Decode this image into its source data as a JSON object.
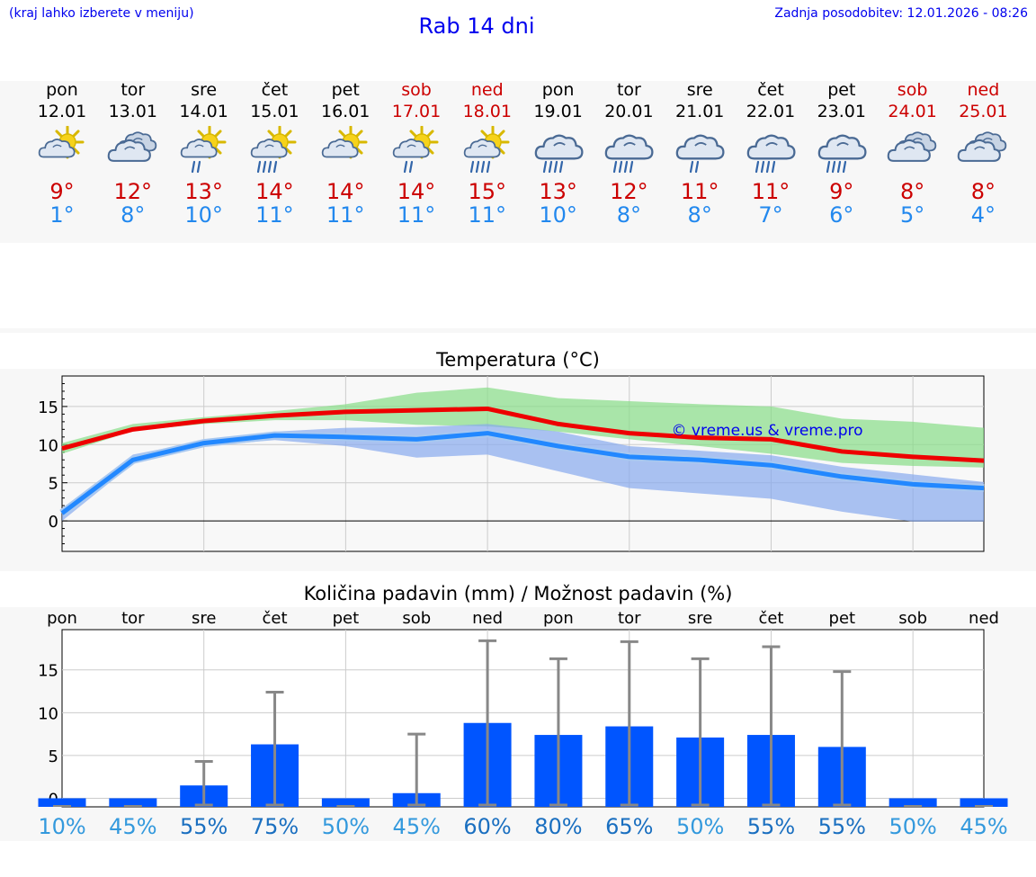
{
  "header": {
    "hint": "(kraj lahko izberete v meniju)",
    "title": "Rab 14 dni",
    "updated": "Zadnja posodobitev: 12.01.2026 - 08:26"
  },
  "days": [
    {
      "name": "pon",
      "date": "12.01",
      "weekend": false,
      "icon": "sun-cloud-icon",
      "tmax": "9°",
      "tmin": "1°"
    },
    {
      "name": "tor",
      "date": "13.01",
      "weekend": false,
      "icon": "cloudy-icon",
      "tmax": "12°",
      "tmin": "8°"
    },
    {
      "name": "sre",
      "date": "14.01",
      "weekend": false,
      "icon": "sun-cloud-light-rain-icon",
      "tmax": "13°",
      "tmin": "10°"
    },
    {
      "name": "čet",
      "date": "15.01",
      "weekend": false,
      "icon": "sun-cloud-rain-icon",
      "tmax": "14°",
      "tmin": "11°"
    },
    {
      "name": "pet",
      "date": "16.01",
      "weekend": false,
      "icon": "sun-cloud-icon",
      "tmax": "14°",
      "tmin": "11°"
    },
    {
      "name": "sob",
      "date": "17.01",
      "weekend": true,
      "icon": "sun-cloud-light-rain-icon",
      "tmax": "14°",
      "tmin": "11°"
    },
    {
      "name": "ned",
      "date": "18.01",
      "weekend": true,
      "icon": "sun-cloud-rain-icon",
      "tmax": "15°",
      "tmin": "11°"
    },
    {
      "name": "pon",
      "date": "19.01",
      "weekend": false,
      "icon": "cloud-rain-icon",
      "tmax": "13°",
      "tmin": "10°"
    },
    {
      "name": "tor",
      "date": "20.01",
      "weekend": false,
      "icon": "cloud-rain-icon",
      "tmax": "12°",
      "tmin": "8°"
    },
    {
      "name": "sre",
      "date": "21.01",
      "weekend": false,
      "icon": "cloud-light-rain-icon",
      "tmax": "11°",
      "tmin": "8°"
    },
    {
      "name": "čet",
      "date": "22.01",
      "weekend": false,
      "icon": "cloud-rain-icon",
      "tmax": "11°",
      "tmin": "7°"
    },
    {
      "name": "pet",
      "date": "23.01",
      "weekend": false,
      "icon": "cloud-rain-icon",
      "tmax": "9°",
      "tmin": "6°"
    },
    {
      "name": "sob",
      "date": "24.01",
      "weekend": true,
      "icon": "cloudy-icon",
      "tmax": "8°",
      "tmin": "5°"
    },
    {
      "name": "ned",
      "date": "25.01",
      "weekend": true,
      "icon": "cloudy-icon",
      "tmax": "8°",
      "tmin": "4°"
    }
  ],
  "colors": {
    "max_line": "#ee0000",
    "min_line": "#2288ff",
    "max_band": "#88dd88",
    "min_band": "#88aaee",
    "bar": "#0055ff",
    "error": "#888888",
    "link": "#0000ee"
  },
  "chart_data": [
    {
      "type": "line",
      "title": "Temperatura (°C)",
      "watermark": "© vreme.us & vreme.pro",
      "ylim": [
        -4,
        19
      ],
      "yticks": [
        0,
        5,
        10,
        15
      ],
      "x": [
        0,
        1,
        2,
        3,
        4,
        5,
        6,
        7,
        8,
        9,
        10,
        11,
        12,
        13
      ],
      "series": [
        {
          "name": "max",
          "values": [
            9.5,
            12.0,
            13.1,
            13.8,
            14.3,
            14.5,
            14.7,
            12.7,
            11.5,
            10.9,
            10.7,
            9.1,
            8.4,
            7.9
          ],
          "band_low": [
            8.8,
            11.8,
            12.7,
            13.2,
            13.2,
            12.6,
            12.4,
            11.7,
            10.7,
            9.8,
            8.8,
            7.6,
            7.2,
            7.0
          ],
          "band_high": [
            10.2,
            12.7,
            13.6,
            14.4,
            15.3,
            16.8,
            17.5,
            16.1,
            15.7,
            15.3,
            15.0,
            13.4,
            13.0,
            12.2
          ]
        },
        {
          "name": "min",
          "values": [
            1.0,
            8.0,
            10.2,
            11.2,
            11.0,
            10.7,
            11.5,
            9.8,
            8.4,
            8.0,
            7.3,
            5.8,
            4.8,
            4.3
          ],
          "band_low": [
            0.0,
            7.5,
            9.8,
            10.6,
            9.8,
            8.3,
            8.7,
            6.5,
            4.3,
            3.6,
            2.9,
            1.2,
            -0.1,
            -0.1
          ],
          "band_high": [
            1.6,
            8.7,
            10.5,
            11.7,
            12.2,
            12.3,
            12.7,
            11.7,
            9.8,
            9.2,
            8.6,
            7.1,
            6.1,
            5.1
          ]
        }
      ]
    },
    {
      "type": "bar",
      "title": "Količina padavin (mm) / Možnost padavin (%)",
      "categories": [
        "pon",
        "tor",
        "sre",
        "čet",
        "pet",
        "sob",
        "ned",
        "pon",
        "tor",
        "sre",
        "čet",
        "pet",
        "sob",
        "ned"
      ],
      "ylim": [
        -1,
        19.7
      ],
      "yticks": [
        0,
        5,
        10,
        15
      ],
      "values": [
        0,
        0,
        1.5,
        6.3,
        0,
        0.6,
        8.8,
        7.4,
        8.4,
        7.1,
        7.4,
        6.0,
        0,
        0
      ],
      "error_low": [
        0,
        0,
        0,
        0,
        0,
        0,
        0,
        0,
        0,
        0,
        0,
        0,
        0,
        0
      ],
      "error_high": [
        0,
        0,
        4.3,
        12.4,
        0,
        7.5,
        18.4,
        16.3,
        18.3,
        16.3,
        17.7,
        14.8,
        0,
        0
      ],
      "probability": [
        "10%",
        "45%",
        "55%",
        "75%",
        "50%",
        "45%",
        "60%",
        "80%",
        "65%",
        "50%",
        "55%",
        "55%",
        "50%",
        "45%"
      ]
    }
  ]
}
